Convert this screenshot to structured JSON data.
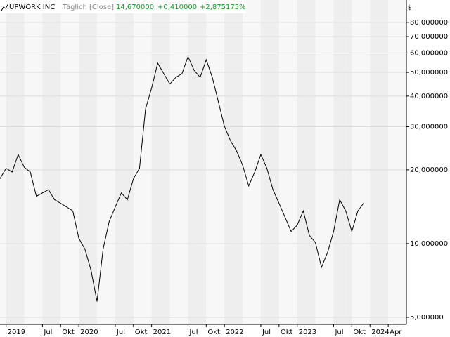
{
  "chart_data": {
    "type": "line",
    "title": "UPWORK INC",
    "subtitle": "Täglich [Close]",
    "last_price": "14,670000",
    "change": "+0,410000",
    "change_percent": "+2,875175%",
    "y_unit": "$",
    "log_scale": true,
    "grid": true,
    "x": [
      "2018-12",
      "2019-01",
      "2019-02",
      "2019-03",
      "2019-04",
      "2019-05",
      "2019-06",
      "2019-07",
      "2019-08",
      "2019-09",
      "2019-10",
      "2019-11",
      "2019-12",
      "2020-01",
      "2020-02",
      "2020-03",
      "2020-04",
      "2020-05",
      "2020-06",
      "2020-07",
      "2020-08",
      "2020-09",
      "2020-10",
      "2020-11",
      "2020-12",
      "2021-01",
      "2021-02",
      "2021-03",
      "2021-04",
      "2021-05",
      "2021-06",
      "2021-07",
      "2021-08",
      "2021-09",
      "2021-10",
      "2021-11",
      "2021-12",
      "2022-01",
      "2022-02",
      "2022-03",
      "2022-04",
      "2022-05",
      "2022-06",
      "2022-07",
      "2022-08",
      "2022-09",
      "2022-10",
      "2022-11",
      "2022-12",
      "2023-01",
      "2023-02",
      "2023-03",
      "2023-04",
      "2023-05",
      "2023-06",
      "2023-07",
      "2023-08",
      "2023-09",
      "2023-10",
      "2023-11",
      "2023-12"
    ],
    "series": [
      {
        "name": "UPWORK INC",
        "color": "#000000",
        "values": [
          18.4,
          20.3,
          19.6,
          23.1,
          20.5,
          19.6,
          15.6,
          16.1,
          16.6,
          15.1,
          14.6,
          14.1,
          13.6,
          10.5,
          9.5,
          7.8,
          5.8,
          9.5,
          12.3,
          14.1,
          16.1,
          15.1,
          18.4,
          20.3,
          35.5,
          43.2,
          54.5,
          49.4,
          44.8,
          47.7,
          49.4,
          58,
          51,
          47.7,
          56.3,
          47.7,
          37.9,
          30.1,
          26.3,
          23.9,
          20.9,
          17.2,
          19.6,
          23.1,
          20.3,
          16.6,
          14.6,
          12.8,
          11.2,
          11.9,
          13.6,
          10.8,
          10.1,
          8.0,
          9.2,
          11.2,
          15.1,
          13.6,
          11.2,
          13.6,
          14.67
        ]
      }
    ],
    "xlim": [
      "2018-12",
      "2024-07"
    ],
    "xticks": [
      {
        "value": "2019-01",
        "label": "2019"
      },
      {
        "value": "2019-07",
        "label": "Jul"
      },
      {
        "value": "2019-10",
        "label": "Okt"
      },
      {
        "value": "2020-01",
        "label": "2020"
      },
      {
        "value": "2020-07",
        "label": "Jul"
      },
      {
        "value": "2020-10",
        "label": "Okt"
      },
      {
        "value": "2021-01",
        "label": "2021"
      },
      {
        "value": "2021-07",
        "label": "Jul"
      },
      {
        "value": "2021-10",
        "label": "Okt"
      },
      {
        "value": "2022-01",
        "label": "2022"
      },
      {
        "value": "2022-07",
        "label": "Jul"
      },
      {
        "value": "2022-10",
        "label": "Okt"
      },
      {
        "value": "2023-01",
        "label": "2023"
      },
      {
        "value": "2023-07",
        "label": "Jul"
      },
      {
        "value": "2023-10",
        "label": "Okt"
      },
      {
        "value": "2024-01",
        "label": "2024"
      },
      {
        "value": "2024-04",
        "label": "Apr"
      }
    ],
    "ylim": [
      4.68,
      86.5
    ],
    "yticks": [
      {
        "value": 5,
        "label": "5,000000"
      },
      {
        "value": 10,
        "label": "10,000000"
      },
      {
        "value": 20,
        "label": "20,000000"
      },
      {
        "value": 30,
        "label": "30,000000"
      },
      {
        "value": 40,
        "label": "40,000000"
      },
      {
        "value": 50,
        "label": "50,000000"
      },
      {
        "value": 60,
        "label": "60,000000"
      },
      {
        "value": 70,
        "label": "70,000000"
      },
      {
        "value": 80,
        "label": "80,000000"
      }
    ]
  }
}
